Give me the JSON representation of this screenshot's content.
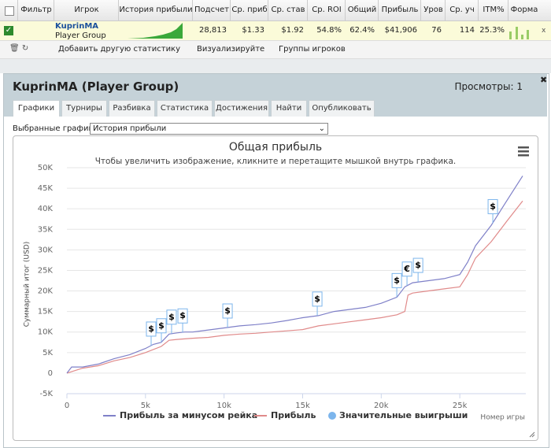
{
  "table": {
    "headers": [
      "Фильтр",
      "Игрок",
      "История прибыли",
      "Подсчет",
      "Ср. приб",
      "Ср. став",
      "Ср. ROI",
      "Общий",
      "Прибыль",
      "Уров",
      "Ср. уч",
      "ITM%",
      "Форма"
    ],
    "row": {
      "name": "KuprinMA",
      "group": "Player Group",
      "values": [
        "28,813",
        "$1.33",
        "$1.92",
        "54.8%",
        "62.4%",
        "$41,906",
        "76",
        "114",
        "25.3%"
      ]
    }
  },
  "toolbar": [
    "Добавить другую статистику",
    "Визуализируйте",
    "Группы игроков"
  ],
  "panel": {
    "title": "KuprinMA (Player Group)",
    "views": "Просмотры: 1",
    "tabs": [
      "Графики",
      "Турниры",
      "Разбивка",
      "Статистика",
      "Достижения",
      "Найти",
      "Опубликовать"
    ],
    "select_label": "Выбранные графики:",
    "select_value": "История прибыли"
  },
  "chart_data": {
    "type": "line",
    "title": "Общая прибыль",
    "subtitle": "Чтобы увеличить изображение, кликните и перетащите мышкой внутрь графика.",
    "y_label": "Суммарный итог (USD)",
    "x_label": "Номер игры",
    "xlim": [
      0,
      29200
    ],
    "xticks": [
      0,
      {
        "value": 5000,
        "label": "5k"
      },
      {
        "value": 10000,
        "label": "10k"
      },
      {
        "value": 15000,
        "label": "15k"
      },
      {
        "value": 20000,
        "label": "20k"
      },
      {
        "value": 25000,
        "label": "25k"
      }
    ],
    "ylim": [
      -5000,
      50000
    ],
    "yticks": [
      {
        "value": -5000,
        "label": "-5K"
      },
      0,
      {
        "value": 5000,
        "label": "5K"
      },
      {
        "value": 10000,
        "label": "10K"
      },
      {
        "value": 15000,
        "label": "15K"
      },
      {
        "value": 20000,
        "label": "20K"
      },
      {
        "value": 25000,
        "label": "25K"
      },
      {
        "value": 30000,
        "label": "30K"
      },
      {
        "value": 35000,
        "label": "35K"
      },
      {
        "value": 40000,
        "label": "40K"
      },
      {
        "value": 45000,
        "label": "45K"
      },
      {
        "value": 50000,
        "label": "50K"
      }
    ],
    "grid": true,
    "series": [
      {
        "name": "Прибыль за минусом рейка",
        "color": "#7f80c8",
        "x": [
          0,
          300,
          1000,
          2000,
          3000,
          4000,
          5000,
          5500,
          6000,
          6500,
          7000,
          7500,
          8000,
          9000,
          10000,
          11000,
          12000,
          13000,
          14000,
          15000,
          16000,
          17000,
          18000,
          19000,
          20000,
          21000,
          21500,
          22000,
          23000,
          24000,
          25000,
          25500,
          26000,
          27000,
          28000,
          28500,
          29000
        ],
        "values": [
          0,
          1500,
          1500,
          2200,
          3500,
          4500,
          6000,
          7000,
          7500,
          9500,
          9800,
          10000,
          10000,
          10500,
          11000,
          11500,
          11800,
          12200,
          12800,
          13500,
          14000,
          15000,
          15500,
          16000,
          17000,
          18500,
          21000,
          22000,
          22500,
          23000,
          24000,
          27000,
          31000,
          36000,
          42000,
          45000,
          48000
        ]
      },
      {
        "name": "Прибыль",
        "color": "#e08a8a",
        "x": [
          0,
          1000,
          2000,
          3000,
          4000,
          5000,
          6000,
          6500,
          7000,
          8000,
          9000,
          10000,
          11000,
          12000,
          13000,
          14000,
          15000,
          16000,
          17000,
          18000,
          19000,
          20000,
          21000,
          21500,
          21700,
          22000,
          23000,
          24000,
          25000,
          25500,
          26000,
          27000,
          28000,
          29000
        ],
        "values": [
          0,
          1200,
          1800,
          3000,
          3800,
          5000,
          6500,
          8000,
          8200,
          8500,
          8700,
          9200,
          9500,
          9700,
          10000,
          10300,
          10600,
          11500,
          12000,
          12500,
          13000,
          13500,
          14200,
          15000,
          19000,
          19500,
          20000,
          20500,
          21000,
          24000,
          28000,
          32000,
          37000,
          41900
        ]
      }
    ],
    "flags": {
      "name": "Значительные выигрыши",
      "color": "#7cb5ec",
      "x": [
        5360,
        6010,
        6660,
        7365,
        10220,
        15930,
        20990,
        21640,
        22345,
        27100
      ],
      "y": [
        6700,
        7500,
        9600,
        9900,
        11100,
        14000,
        18500,
        21300,
        22200,
        36500
      ],
      "labels": [
        "$",
        "$",
        "$",
        "$",
        "$",
        "$",
        "$",
        "€",
        "$",
        "$"
      ]
    }
  }
}
